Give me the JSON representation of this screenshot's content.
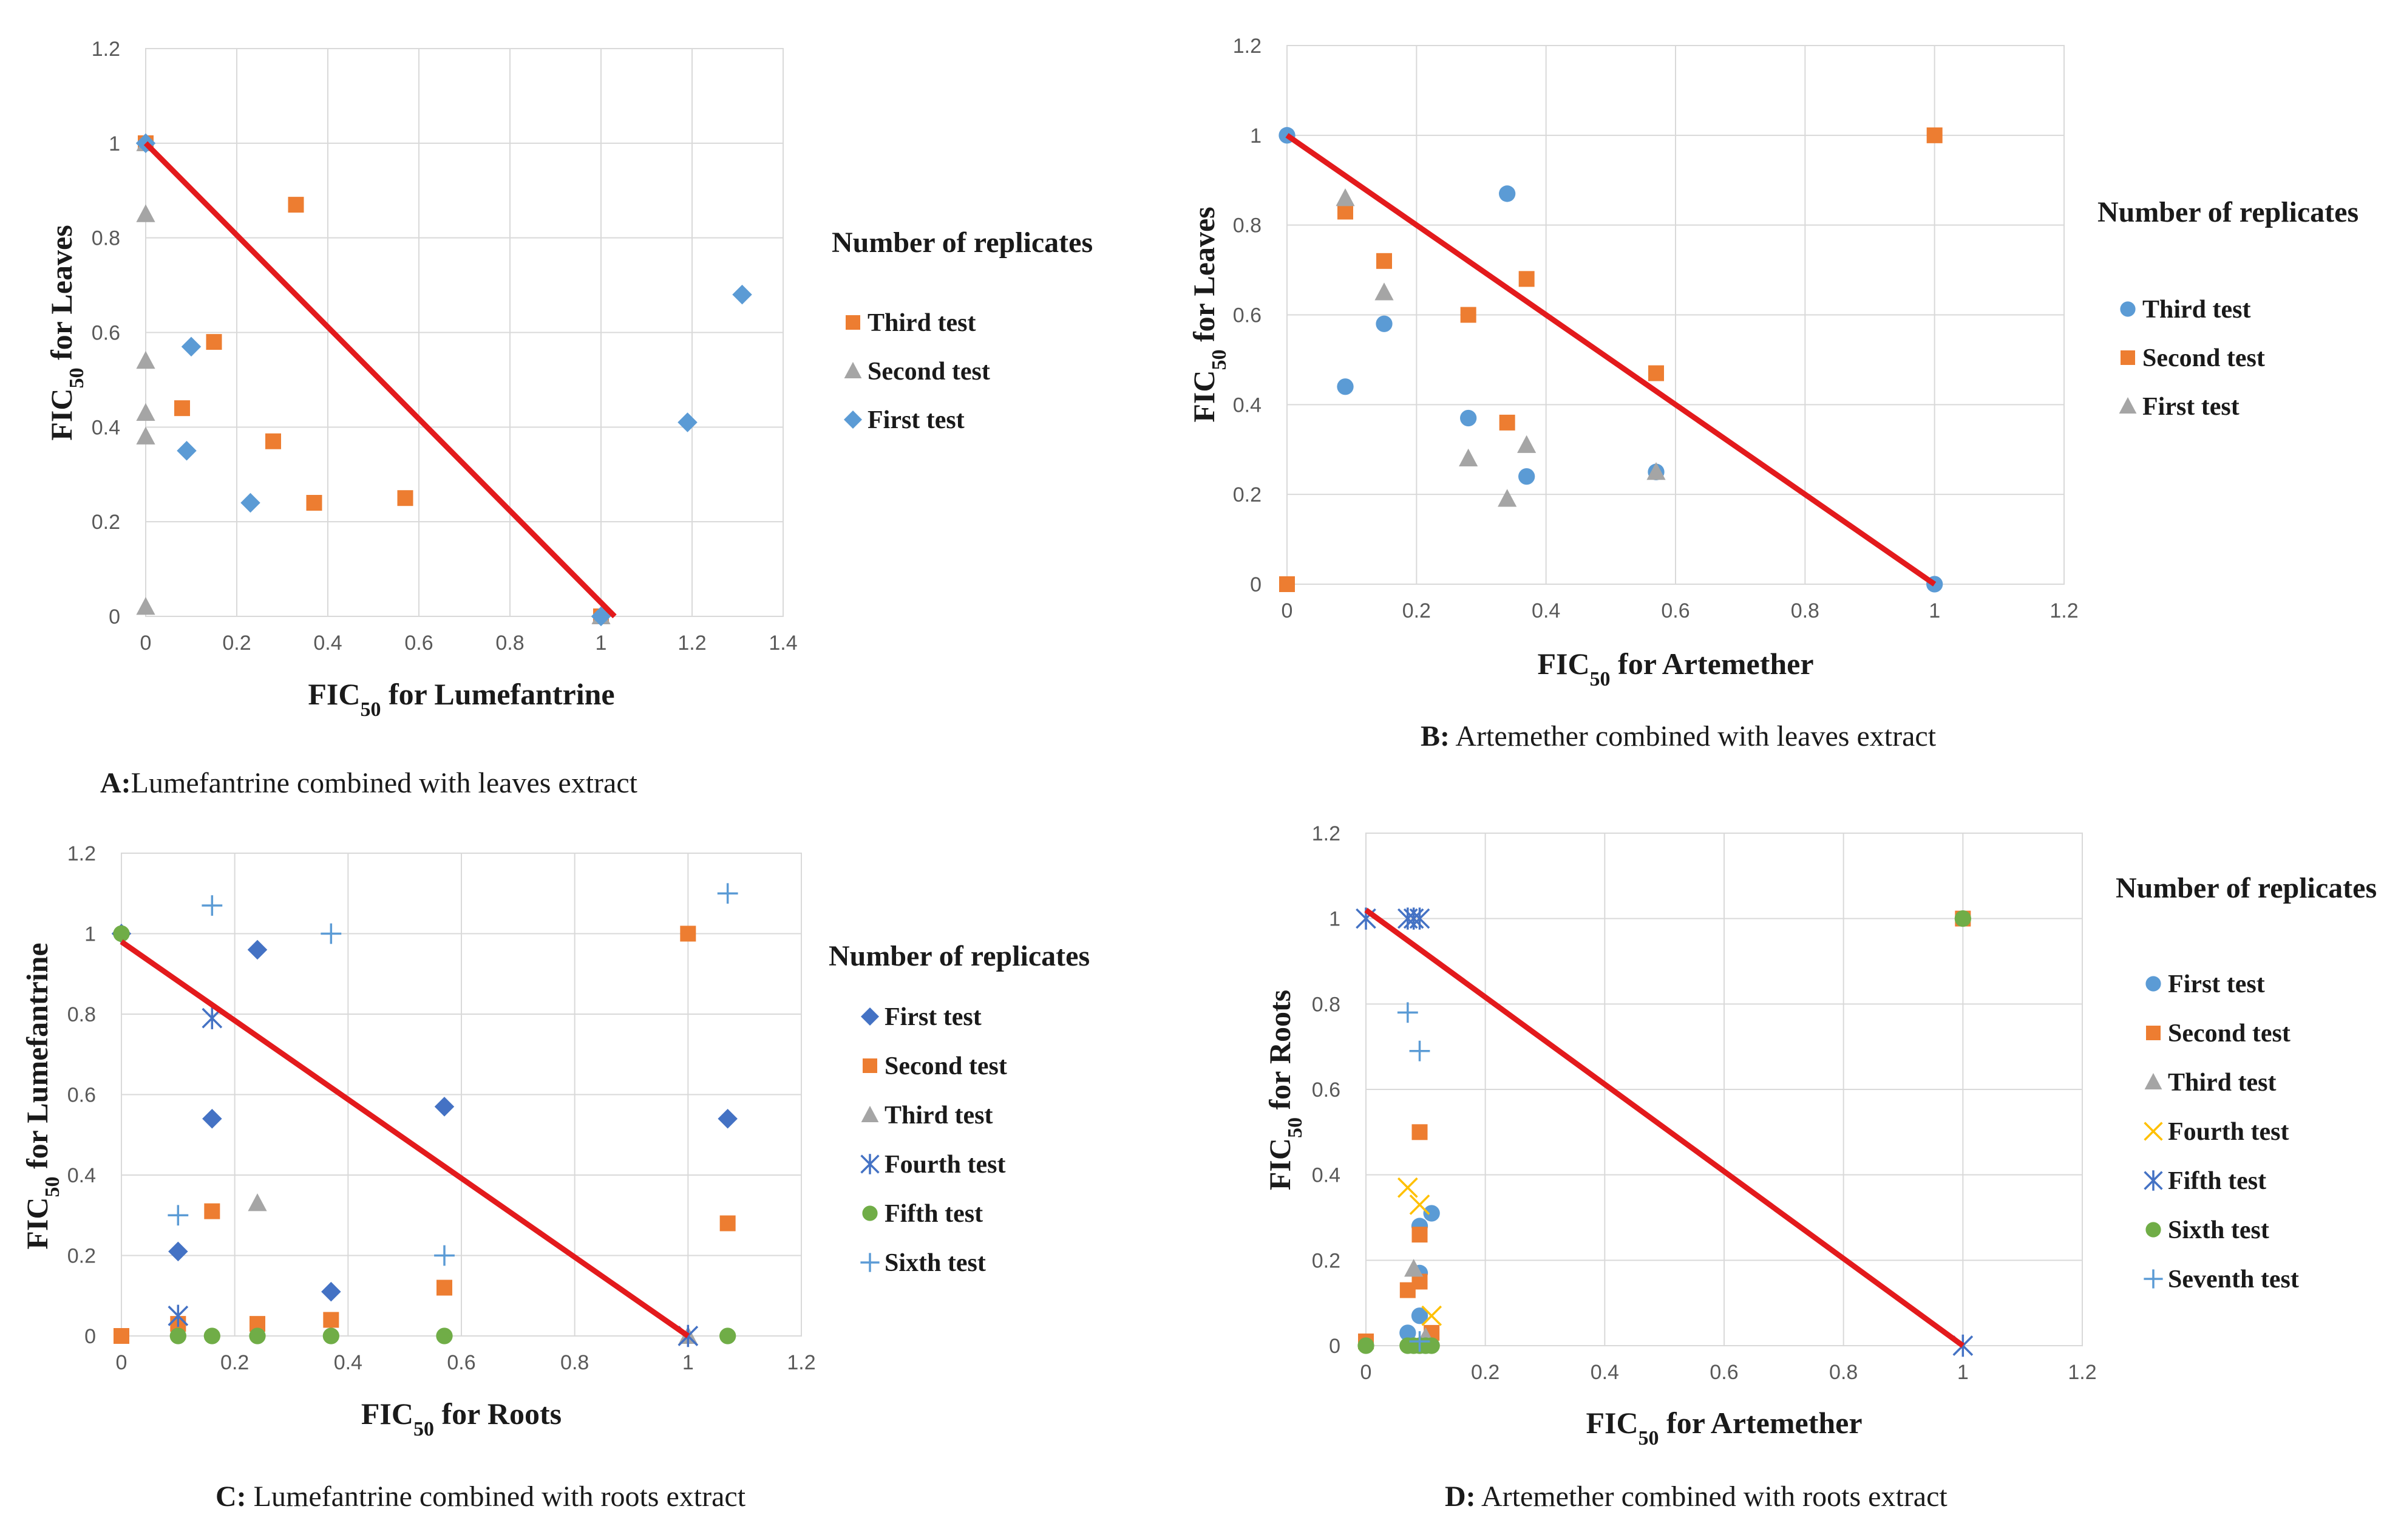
{
  "colors": {
    "blue": "#5B9BD5",
    "orange": "#ED7D31",
    "gray": "#A5A5A5",
    "yellow": "#FFC000",
    "navy": "#4472C4",
    "green": "#70AD47",
    "line": "#E31A1C"
  },
  "chart_data": [
    {
      "id": "A",
      "type": "scatter",
      "caption_label": "A:",
      "caption_text": "Lumefantrine  combined  with  leaves  extract",
      "xlabel_pre": "FIC",
      "xlabel_sub": "50",
      "xlabel_post": "  for  Lumefantrine",
      "ylabel_pre": "FIC",
      "ylabel_sub": "50",
      "ylabel_post": "  for  Leaves",
      "xlim": [
        0,
        1.4
      ],
      "ylim": [
        0,
        1.2
      ],
      "xticks": [
        "0",
        "0.2",
        "0.4",
        "0.6",
        "0.8",
        "1",
        "1.2",
        "1.4"
      ],
      "yticks": [
        "0",
        "0.2",
        "0.4",
        "0.6",
        "0.8",
        "1",
        "1.2"
      ],
      "grid": true,
      "legend_title": "Number of replicates",
      "line": [
        [
          0,
          1
        ],
        [
          1.03,
          0
        ]
      ],
      "series": [
        {
          "name": "Third test",
          "marker": "square",
          "color": "orange",
          "points": [
            [
              0,
              1
            ],
            [
              0.08,
              0.44
            ],
            [
              0.15,
              0.58
            ],
            [
              0.33,
              0.87
            ],
            [
              0.28,
              0.37
            ],
            [
              0.37,
              0.24
            ],
            [
              0.57,
              0.25
            ],
            [
              1,
              0
            ]
          ]
        },
        {
          "name": "Second test",
          "marker": "triangle",
          "color": "gray",
          "points": [
            [
              0,
              1
            ],
            [
              0,
              0.85
            ],
            [
              0,
              0.54
            ],
            [
              0,
              0.43
            ],
            [
              0,
              0.38
            ],
            [
              0,
              0.02
            ],
            [
              1,
              0
            ]
          ]
        },
        {
          "name": "First test",
          "marker": "diamond",
          "color": "blue",
          "points": [
            [
              0,
              1
            ],
            [
              0.1,
              0.57
            ],
            [
              0.09,
              0.35
            ],
            [
              0.23,
              0.24
            ],
            [
              1.19,
              0.41
            ],
            [
              1.31,
              0.68
            ],
            [
              1,
              0
            ]
          ]
        }
      ]
    },
    {
      "id": "B",
      "type": "scatter",
      "caption_label": "B:",
      "caption_text": " Artemether  combined  with  leaves  extract",
      "xlabel_pre": "FIC",
      "xlabel_sub": "50",
      "xlabel_post": "  for  Artemether",
      "ylabel_pre": "FIC",
      "ylabel_sub": "50",
      "ylabel_post": "  for  Leaves",
      "xlim": [
        0,
        1.2
      ],
      "ylim": [
        0,
        1.2
      ],
      "xticks": [
        "0",
        "0.2",
        "0.4",
        "0.6",
        "0.8",
        "1",
        "1.2"
      ],
      "yticks": [
        "0",
        "0.2",
        "0.4",
        "0.6",
        "0.8",
        "1",
        "1.2"
      ],
      "grid": true,
      "legend_title": "Number of replicates",
      "line": [
        [
          0,
          1
        ],
        [
          1,
          0
        ]
      ],
      "series": [
        {
          "name": "Third test",
          "marker": "circle",
          "color": "blue",
          "points": [
            [
              0,
              1
            ],
            [
              0.34,
              0.87
            ],
            [
              0.15,
              0.58
            ],
            [
              0.09,
              0.44
            ],
            [
              0.28,
              0.37
            ],
            [
              0.37,
              0.24
            ],
            [
              0.57,
              0.25
            ],
            [
              1,
              0
            ]
          ]
        },
        {
          "name": "Second test",
          "marker": "square",
          "color": "orange",
          "points": [
            [
              0,
              0
            ],
            [
              0.09,
              0.83
            ],
            [
              0.15,
              0.72
            ],
            [
              0.28,
              0.6
            ],
            [
              0.37,
              0.68
            ],
            [
              0.34,
              0.36
            ],
            [
              0.57,
              0.47
            ],
            [
              1,
              1
            ]
          ]
        },
        {
          "name": "First test",
          "marker": "triangle",
          "color": "gray",
          "points": [
            [
              0.09,
              0.86
            ],
            [
              0.15,
              0.65
            ],
            [
              0.28,
              0.28
            ],
            [
              0.37,
              0.31
            ],
            [
              0.34,
              0.19
            ],
            [
              0.57,
              0.25
            ]
          ]
        }
      ]
    },
    {
      "id": "C",
      "type": "scatter",
      "caption_label": "C:",
      "caption_text": " Lumefantrine  combined  with  roots  extract",
      "xlabel_pre": "FIC",
      "xlabel_sub": "50",
      "xlabel_post": "  for  Roots",
      "ylabel_pre": "FIC",
      "ylabel_sub": "50",
      "ylabel_post": "  for  Lumefantrine",
      "xlim": [
        0,
        1.2
      ],
      "ylim": [
        0,
        1.2
      ],
      "xticks": [
        "0",
        "0.2",
        "0.4",
        "0.6",
        "0.8",
        "1",
        "1.2"
      ],
      "yticks": [
        "0",
        "0.2",
        "0.4",
        "0.6",
        "0.8",
        "1",
        "1.2"
      ],
      "grid": true,
      "legend_title": "Number of replicates",
      "line": [
        [
          0,
          0.98
        ],
        [
          1,
          0
        ]
      ],
      "series": [
        {
          "name": "First test",
          "marker": "diamond",
          "color": "navy",
          "points": [
            [
              0,
              1
            ],
            [
              0.1,
              0.21
            ],
            [
              0.16,
              0.54
            ],
            [
              0.24,
              0.96
            ],
            [
              0.37,
              0.11
            ],
            [
              0.57,
              0.57
            ],
            [
              1.07,
              0.54
            ]
          ]
        },
        {
          "name": "Second test",
          "marker": "square",
          "color": "orange",
          "points": [
            [
              0,
              0
            ],
            [
              0.1,
              0.03
            ],
            [
              0.16,
              0.31
            ],
            [
              0.24,
              0.03
            ],
            [
              0.37,
              0.04
            ],
            [
              0.57,
              0.12
            ],
            [
              1,
              1
            ],
            [
              1.07,
              0.28
            ]
          ]
        },
        {
          "name": "Third test",
          "marker": "triangle",
          "color": "gray",
          "points": [
            [
              0.24,
              0.33
            ],
            [
              1,
              0
            ]
          ]
        },
        {
          "name": "Fourth test",
          "marker": "asterisk",
          "color": "navy",
          "points": [
            [
              0.1,
              0.05
            ],
            [
              0.16,
              0.79
            ],
            [
              1,
              0
            ]
          ]
        },
        {
          "name": "Fifth test",
          "marker": "circle",
          "color": "green",
          "points": [
            [
              0,
              1
            ],
            [
              0.1,
              0
            ],
            [
              0.16,
              0
            ],
            [
              0.24,
              0
            ],
            [
              0.37,
              0
            ],
            [
              0.57,
              0
            ],
            [
              1.07,
              0
            ]
          ]
        },
        {
          "name": "Sixth test",
          "marker": "plus",
          "color": "blue",
          "points": [
            [
              0.1,
              0.3
            ],
            [
              0.16,
              1.07
            ],
            [
              0.37,
              1
            ],
            [
              0.57,
              0.2
            ],
            [
              1.07,
              1.1
            ]
          ]
        }
      ]
    },
    {
      "id": "D",
      "type": "scatter",
      "caption_label": "D:",
      "caption_text": " Artemether  combined  with  roots  extract",
      "xlabel_pre": "FIC",
      "xlabel_sub": "50",
      "xlabel_post": "  for  Artemether",
      "ylabel_pre": "FIC",
      "ylabel_sub": "50",
      "ylabel_post": "  for  Roots",
      "xlim": [
        0,
        1.2
      ],
      "ylim": [
        0,
        1.2
      ],
      "xticks": [
        "0",
        "0.2",
        "0.4",
        "0.6",
        "0.8",
        "1",
        "1.2"
      ],
      "yticks": [
        "0",
        "0.2",
        "0.4",
        "0.6",
        "0.8",
        "1",
        "1.2"
      ],
      "grid": true,
      "legend_title": "Number of replicates",
      "line": [
        [
          0,
          1.02
        ],
        [
          1,
          0
        ]
      ],
      "series": [
        {
          "name": "First test",
          "marker": "circle",
          "color": "blue",
          "points": [
            [
              0.07,
              0.03
            ],
            [
              0.09,
              0.07
            ],
            [
              0.09,
              0.17
            ],
            [
              0.09,
              0.28
            ],
            [
              0.11,
              0.31
            ],
            [
              0.1,
              0
            ]
          ]
        },
        {
          "name": "Second test",
          "marker": "square",
          "color": "orange",
          "points": [
            [
              0,
              0.01
            ],
            [
              0.07,
              0.13
            ],
            [
              0.09,
              0.15
            ],
            [
              0.09,
              0.26
            ],
            [
              0.09,
              0.5
            ],
            [
              0.11,
              0.03
            ],
            [
              1,
              1
            ]
          ]
        },
        {
          "name": "Third test",
          "marker": "triangle",
          "color": "gray",
          "points": [
            [
              0.08,
              0.18
            ],
            [
              0.1,
              0.02
            ]
          ]
        },
        {
          "name": "Fourth test",
          "marker": "x",
          "color": "yellow",
          "points": [
            [
              0.07,
              0.37
            ],
            [
              0.09,
              0.33
            ],
            [
              0.11,
              0.07
            ]
          ]
        },
        {
          "name": "Fifth test",
          "marker": "asterisk",
          "color": "navy",
          "points": [
            [
              0,
              1
            ],
            [
              0.07,
              1
            ],
            [
              0.08,
              1
            ],
            [
              0.09,
              1
            ],
            [
              1,
              0
            ]
          ]
        },
        {
          "name": "Sixth test",
          "marker": "circle",
          "color": "green",
          "points": [
            [
              0,
              0
            ],
            [
              0.07,
              0
            ],
            [
              0.08,
              0
            ],
            [
              0.09,
              0
            ],
            [
              0.1,
              0
            ],
            [
              0.11,
              0
            ],
            [
              1,
              1
            ]
          ]
        },
        {
          "name": "Seventh test",
          "marker": "plus",
          "color": "blue",
          "points": [
            [
              0.07,
              0.78
            ],
            [
              0.09,
              0.69
            ],
            [
              0.09,
              0.01
            ]
          ]
        }
      ]
    }
  ]
}
